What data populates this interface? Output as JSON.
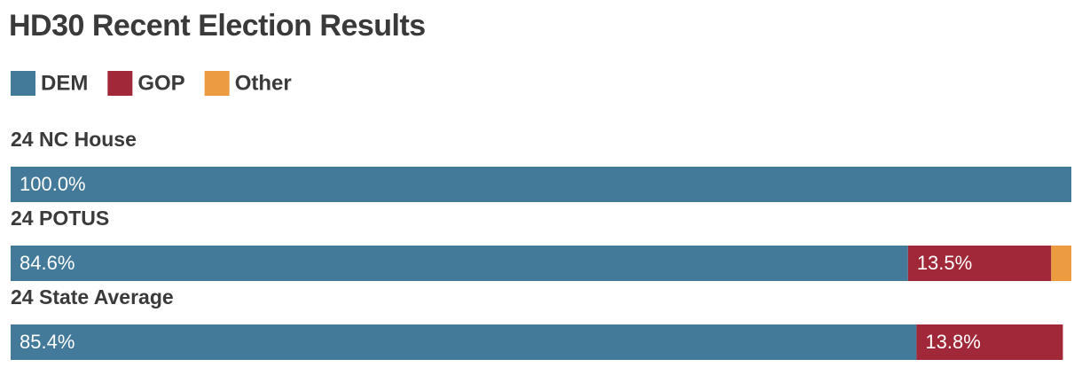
{
  "chart_data": {
    "type": "stacked-bar-horizontal",
    "title": "HD30 Recent Election Results",
    "categories": [
      "24 NC House",
      "24 POTUS",
      "24 State Average"
    ],
    "xlim": [
      0,
      100
    ],
    "series": [
      {
        "name": "DEM",
        "color": "#437a9a",
        "values": [
          100.0,
          84.6,
          85.4
        ],
        "value_labels": [
          "100.0%",
          "84.6%",
          "85.4%"
        ]
      },
      {
        "name": "GOP",
        "color": "#a12838",
        "values": [
          null,
          13.5,
          13.8
        ],
        "value_labels": [
          null,
          "13.5%",
          "13.8%"
        ]
      },
      {
        "name": "Other",
        "color": "#ec9b41",
        "values": [
          null,
          1.9,
          null
        ]
      }
    ]
  }
}
